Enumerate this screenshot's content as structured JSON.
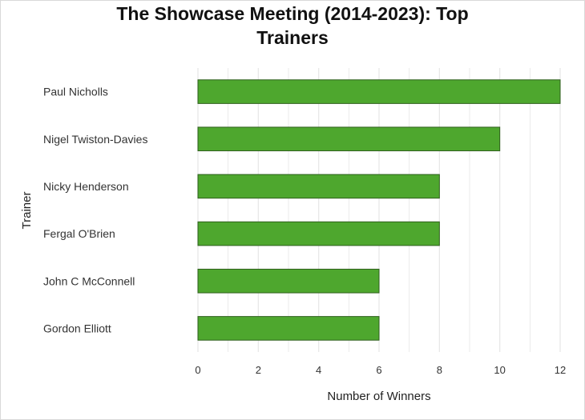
{
  "chart_data": {
    "type": "bar",
    "orientation": "horizontal",
    "title_lines": [
      "The Showcase Meeting (2014-2023): Top",
      "Trainers"
    ],
    "xlabel": "Number of Winners",
    "ylabel": "Trainer",
    "categories": [
      "Paul Nicholls",
      "Nigel Twiston-Davies",
      "Nicky Henderson",
      "Fergal O'Brien",
      "John C McConnell",
      "Gordon Elliott"
    ],
    "values": [
      12,
      10,
      8,
      8,
      6,
      6
    ],
    "xlim": [
      0,
      12
    ],
    "xticks": [
      "0",
      "2",
      "4",
      "6",
      "8",
      "10",
      "12"
    ],
    "grid": true,
    "legend": "none",
    "colors": {
      "bar_fill": "#4ea72e",
      "bar_stroke": "#2f5f1d",
      "grid": "#e6e6e6",
      "text": "#333333"
    }
  }
}
